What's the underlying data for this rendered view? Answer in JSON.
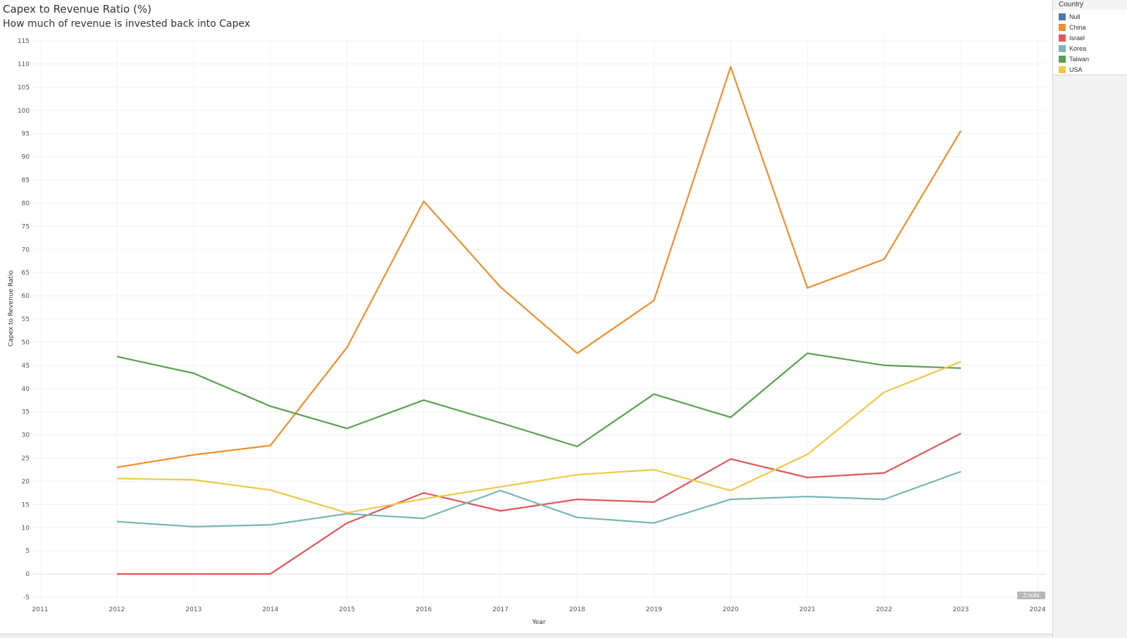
{
  "chart_data": {
    "type": "line",
    "title": "Capex to Revenue Ratio (%)",
    "subtitle": "How much of revenue is invested back into Capex",
    "xlabel": "Year",
    "ylabel": "Capex to Revenue Ratio",
    "xlim": [
      2011,
      2024
    ],
    "ylim": [
      -5,
      115
    ],
    "x_ticks": [
      "2011",
      "2012",
      "2013",
      "2014",
      "2015",
      "2016",
      "2017",
      "2018",
      "2019",
      "2020",
      "2021",
      "2022",
      "2023",
      "2024"
    ],
    "y_ticks": [
      "-5",
      "0",
      "5",
      "10",
      "15",
      "20",
      "25",
      "30",
      "35",
      "40",
      "45",
      "50",
      "55",
      "60",
      "65",
      "70",
      "75",
      "80",
      "85",
      "90",
      "95",
      "100",
      "105",
      "110",
      "115"
    ],
    "grid": true,
    "legend_placement": "top-right",
    "legend_title": "Country",
    "legend": [
      {
        "name": "Null",
        "color": "#4e79a7"
      },
      {
        "name": "China",
        "color": "#f28e2b"
      },
      {
        "name": "Israel",
        "color": "#e15759"
      },
      {
        "name": "Korea",
        "color": "#76b7b2"
      },
      {
        "name": "Taiwan",
        "color": "#59a14f"
      },
      {
        "name": "USA",
        "color": "#edc948"
      }
    ],
    "x": [
      2012,
      2013,
      2014,
      2015,
      2016,
      2017,
      2018,
      2019,
      2020,
      2021,
      2022,
      2023
    ],
    "series": [
      {
        "name": "China",
        "color": "#f28e2b",
        "values": [
          23.0,
          25.7,
          27.7,
          48.9,
          80.4,
          61.9,
          47.6,
          59.0,
          109.4,
          61.7,
          67.9,
          95.6
        ]
      },
      {
        "name": "Israel",
        "color": "#e15759",
        "values": [
          0.0,
          0.0,
          0.0,
          11.0,
          17.5,
          13.6,
          16.1,
          15.5,
          24.8,
          20.8,
          21.8,
          30.3
        ]
      },
      {
        "name": "Korea",
        "color": "#76b7b2",
        "values": [
          11.3,
          10.2,
          10.6,
          13.0,
          12.0,
          18.0,
          12.2,
          11.0,
          16.1,
          16.7,
          16.1,
          22.1
        ]
      },
      {
        "name": "Taiwan",
        "color": "#59a14f",
        "values": [
          46.9,
          43.3,
          36.2,
          31.4,
          37.5,
          32.6,
          27.5,
          38.8,
          33.8,
          47.6,
          45.0,
          44.4
        ]
      },
      {
        "name": "USA",
        "color": "#edc948",
        "values": [
          20.6,
          20.3,
          18.1,
          13.2,
          16.2,
          18.8,
          21.4,
          22.5,
          18.0,
          25.8,
          39.2,
          45.8
        ]
      }
    ],
    "annotations": [
      {
        "text": "2 nulls"
      }
    ]
  }
}
